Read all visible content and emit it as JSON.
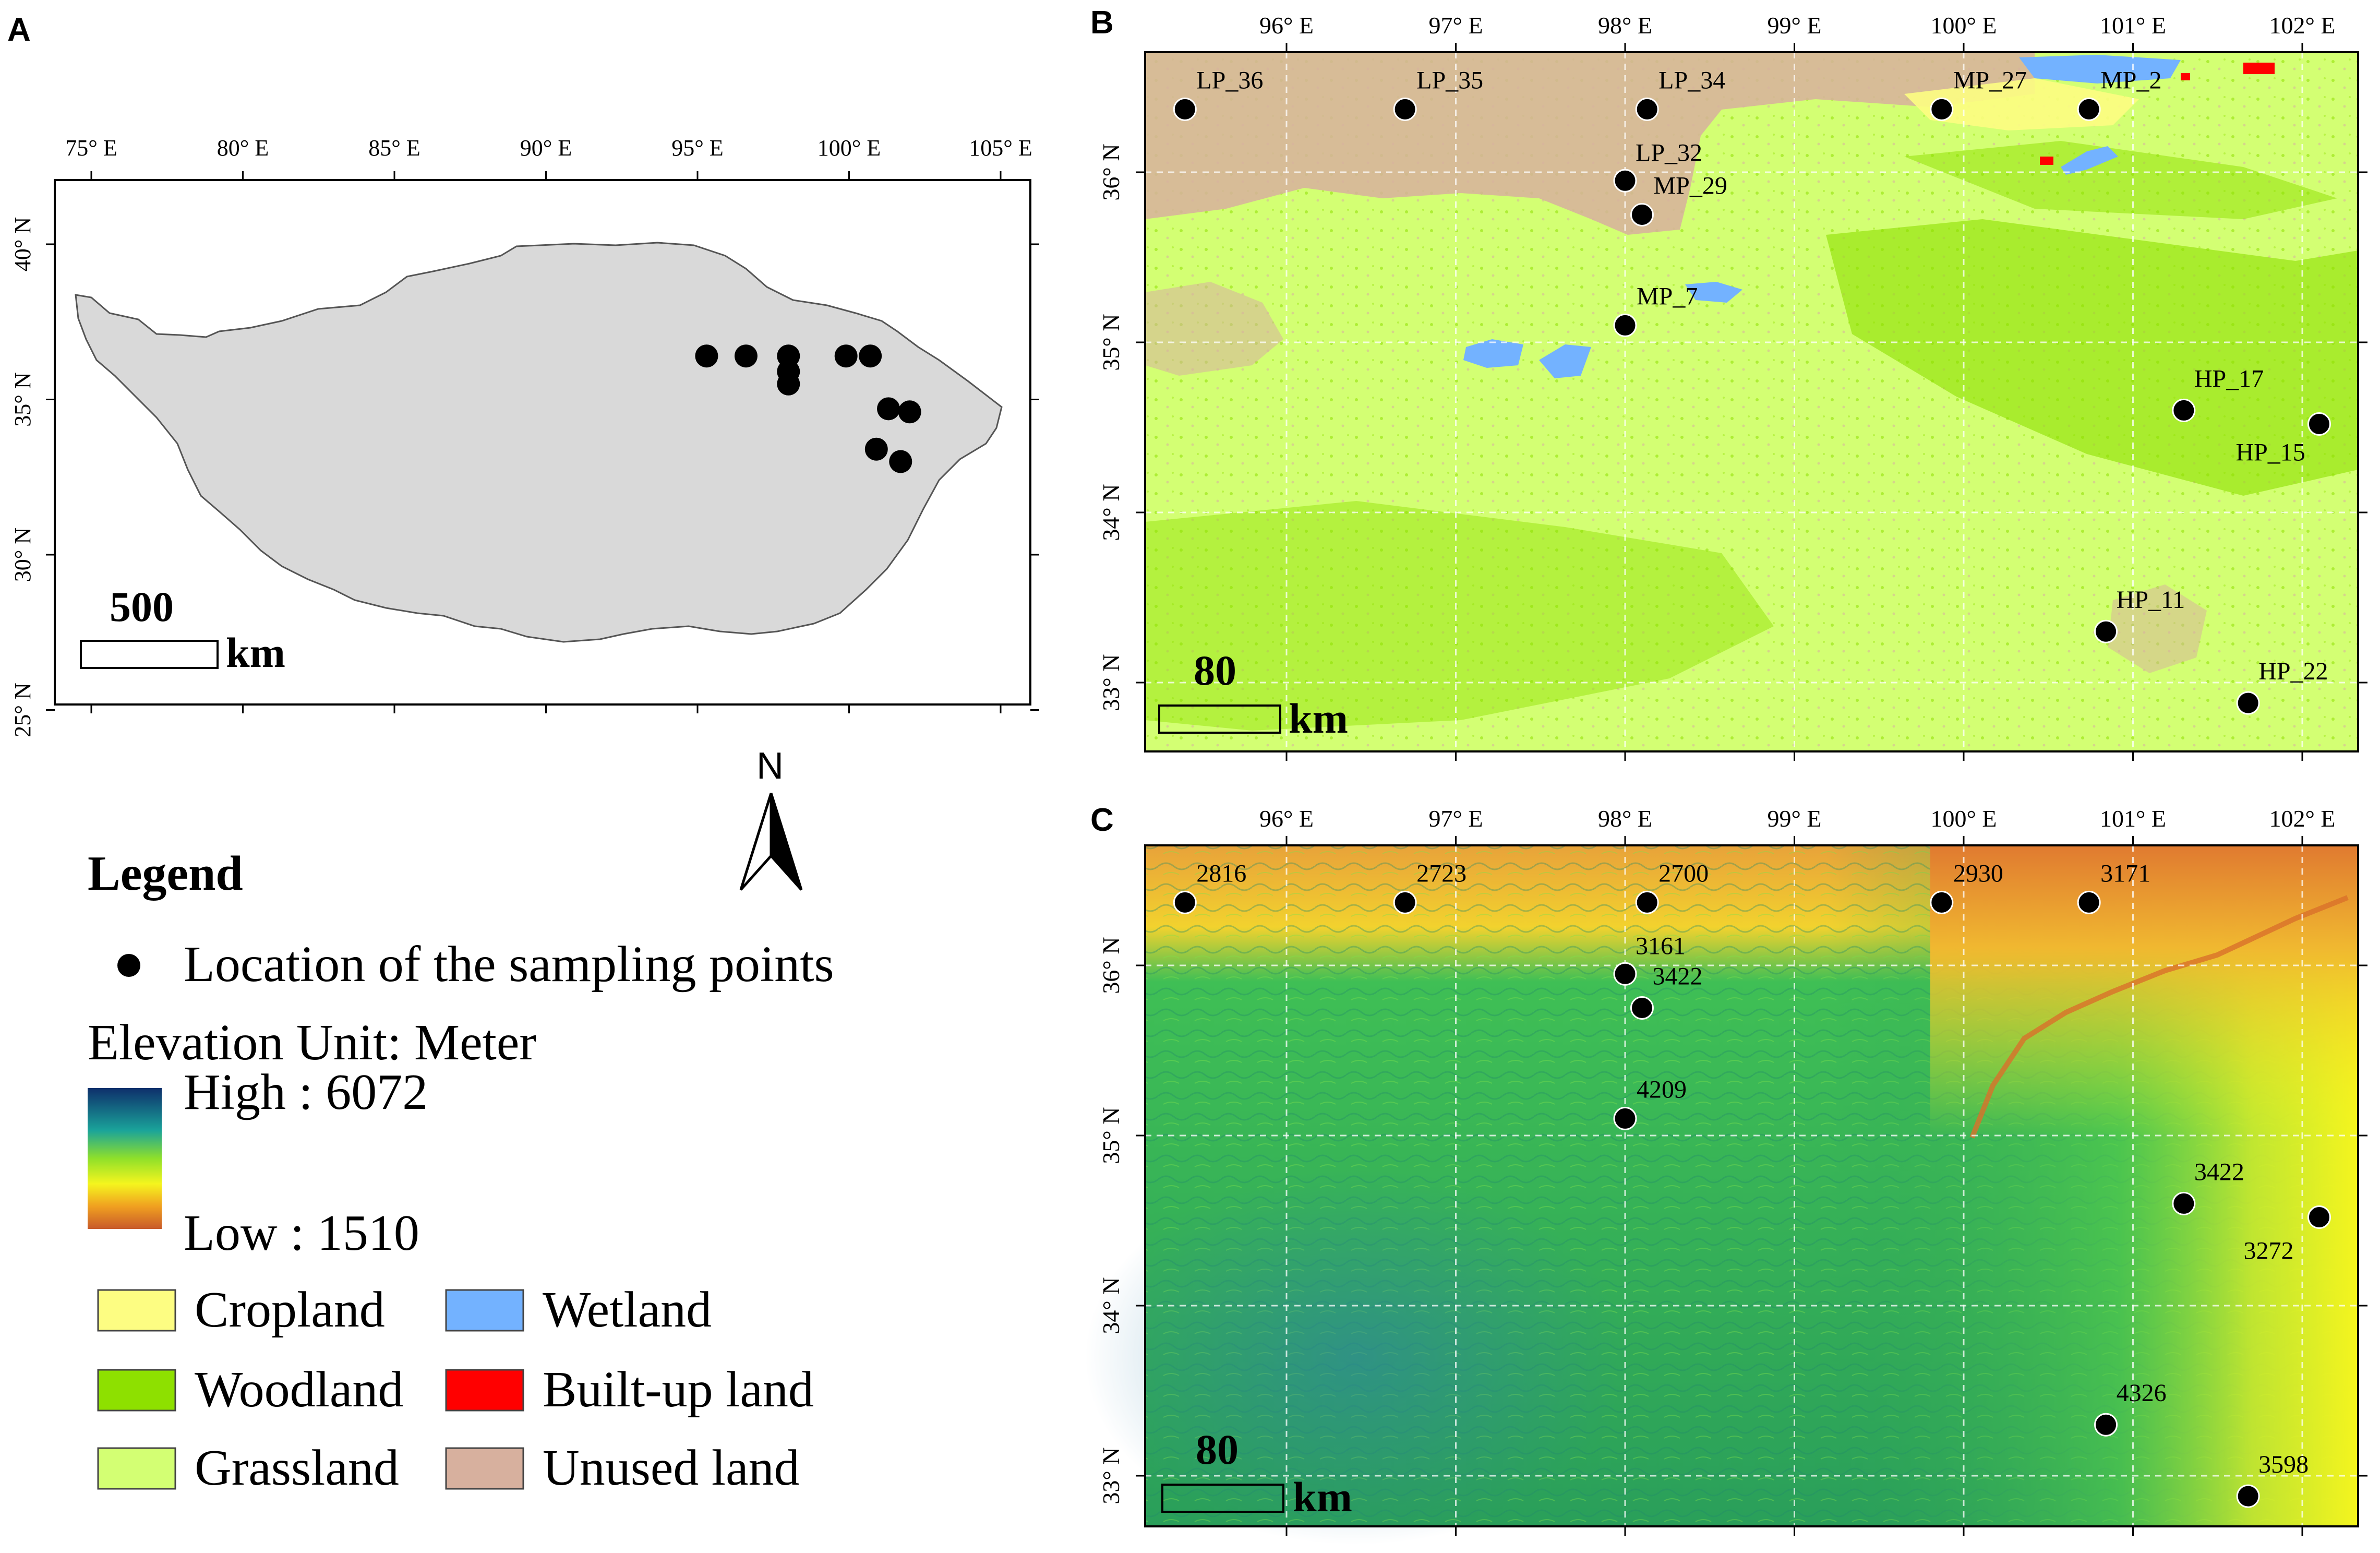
{
  "panels": {
    "A": {
      "letter": "A",
      "lon_ticks": [
        "75° E",
        "80° E",
        "85° E",
        "90° E",
        "95° E",
        "100° E",
        "105° E"
      ],
      "lat_ticks": [
        "40° N",
        "35° N",
        "30° N",
        "25° N"
      ],
      "scale_value": "500",
      "scale_unit": "km",
      "points_lonlat": [
        [
          95.3,
          36.4
        ],
        [
          96.6,
          36.4
        ],
        [
          98.0,
          36.4
        ],
        [
          98.0,
          35.9
        ],
        [
          98.0,
          35.5
        ],
        [
          99.9,
          36.4
        ],
        [
          100.7,
          36.4
        ],
        [
          101.3,
          34.7
        ],
        [
          102.0,
          34.6
        ],
        [
          100.9,
          33.4
        ],
        [
          101.7,
          33.0
        ]
      ]
    },
    "B": {
      "letter": "B",
      "lon_ticks": [
        "96° E",
        "97° E",
        "98° E",
        "99° E",
        "100° E",
        "101° E",
        "102° E"
      ],
      "lat_ticks": [
        "36° N",
        "35° N",
        "34° N",
        "33° N"
      ],
      "scale_value": "80",
      "scale_unit": "km",
      "points": [
        {
          "label": "LP_36",
          "lon": 95.4,
          "lat": 36.37
        },
        {
          "label": "LP_35",
          "lon": 96.7,
          "lat": 36.37
        },
        {
          "label": "LP_34",
          "lon": 98.13,
          "lat": 36.37
        },
        {
          "label": "LP_32",
          "lon": 98.0,
          "lat": 35.95
        },
        {
          "label": "MP_29",
          "lon": 98.1,
          "lat": 35.75
        },
        {
          "label": "MP_7",
          "lon": 98.0,
          "lat": 35.1
        },
        {
          "label": "MP_27",
          "lon": 99.87,
          "lat": 36.37
        },
        {
          "label": "MP_2",
          "lon": 100.74,
          "lat": 36.37
        },
        {
          "label": "HP_17",
          "lon": 101.3,
          "lat": 34.6
        },
        {
          "label": "HP_15",
          "lon": 102.1,
          "lat": 34.52
        },
        {
          "label": "HP_11",
          "lon": 100.84,
          "lat": 33.3
        },
        {
          "label": "HP_22",
          "lon": 101.68,
          "lat": 32.88
        }
      ]
    },
    "C": {
      "letter": "C",
      "lon_ticks": [
        "96° E",
        "97° E",
        "98° E",
        "99° E",
        "100° E",
        "101° E",
        "102° E"
      ],
      "lat_ticks": [
        "36° N",
        "35° N",
        "34° N",
        "33° N"
      ],
      "scale_value": "80",
      "scale_unit": "km",
      "points": [
        {
          "label": "2816",
          "lon": 95.4,
          "lat": 36.37
        },
        {
          "label": "2723",
          "lon": 96.7,
          "lat": 36.37
        },
        {
          "label": "2700",
          "lon": 98.13,
          "lat": 36.37
        },
        {
          "label": "3161",
          "lon": 98.0,
          "lat": 35.95
        },
        {
          "label": "3422",
          "lon": 98.1,
          "lat": 35.75
        },
        {
          "label": "4209",
          "lon": 98.0,
          "lat": 35.1
        },
        {
          "label": "2930",
          "lon": 99.87,
          "lat": 36.37
        },
        {
          "label": "3171",
          "lon": 100.74,
          "lat": 36.37
        },
        {
          "label": "3422",
          "lon": 101.3,
          "lat": 34.6
        },
        {
          "label": "3272",
          "lon": 102.1,
          "lat": 34.52
        },
        {
          "label": "4326",
          "lon": 100.84,
          "lat": 33.3
        },
        {
          "label": "3598",
          "lon": 101.68,
          "lat": 32.88
        }
      ]
    }
  },
  "north_arrow": "N",
  "legend": {
    "title": "Legend",
    "point_label": "Location of the sampling points",
    "elevation_title": "Elevation Unit: Meter",
    "high": "High : 6072",
    "low": "Low : 1510",
    "classes": [
      {
        "name": "Cropland",
        "color": "#fdfd82"
      },
      {
        "name": "Wetland",
        "color": "#73b2ff"
      },
      {
        "name": "Woodland",
        "color": "#8ee000"
      },
      {
        "name": "Built-up land",
        "color": "#ff0000"
      },
      {
        "name": "Grassland",
        "color": "#d3ff73"
      },
      {
        "name": "Unused land",
        "color": "#d7b09e"
      }
    ]
  },
  "colors": {
    "plateau": "#d9d9d9",
    "grassland": "#d3ff73",
    "woodland": "#8ee000",
    "unused": "#d7b09e",
    "wetland": "#73b2ff",
    "builtup": "#ff0000",
    "dem_high": "#1a4a7a",
    "dem_mid": "#2fbf4f",
    "dem_yellow": "#f5f51e",
    "dem_low": "#d2692a"
  }
}
